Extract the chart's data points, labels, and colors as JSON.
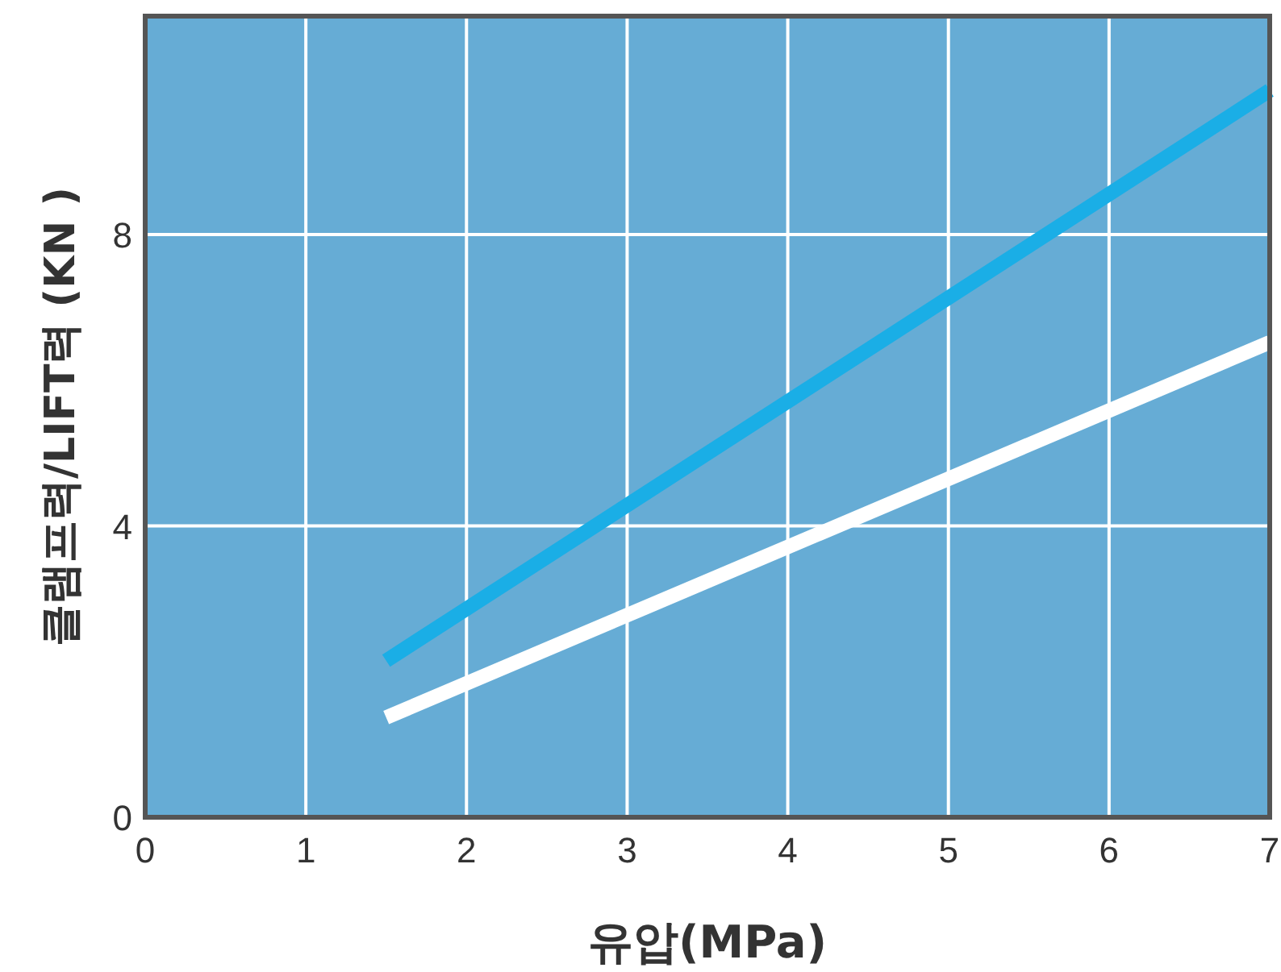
{
  "chart_data": {
    "type": "line",
    "xlabel": "유압(MPa)",
    "ylabel": "클램프력/LIFT력 (KN )",
    "x": [
      1.5,
      7
    ],
    "series": [
      {
        "color": "#1aaee6",
        "values": [
          2.15,
          9.98
        ]
      },
      {
        "color": "#ffffff",
        "values": [
          1.37,
          6.52
        ]
      }
    ],
    "xlim": [
      0,
      7
    ],
    "xticks": [
      0,
      1,
      2,
      3,
      4,
      5,
      6,
      7
    ],
    "ylim": [
      0,
      11
    ],
    "yticks": [
      0,
      4,
      8
    ],
    "grid": true,
    "marker": "none",
    "line_style": "solid"
  }
}
